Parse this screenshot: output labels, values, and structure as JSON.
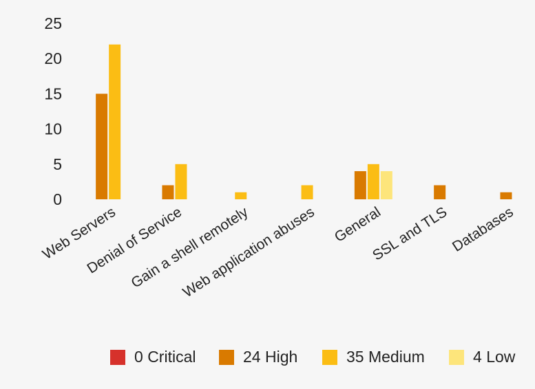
{
  "chart_data": {
    "type": "bar",
    "title": "",
    "xlabel": "",
    "ylabel": "",
    "ylim": [
      0,
      25
    ],
    "yticks": [
      0,
      5,
      10,
      15,
      20,
      25
    ],
    "grid": false,
    "legend_position": "bottom-right",
    "categories": [
      "Web Servers",
      "Denial of Service",
      "Gain a shell remotely",
      "Web application abuses",
      "General",
      "SSL and TLS",
      "Databases"
    ],
    "series": [
      {
        "name": "Critical",
        "count": "0",
        "color": "#d6312b",
        "values": [
          0,
          0,
          0,
          0,
          0,
          0,
          0
        ]
      },
      {
        "name": "High",
        "count": "24",
        "color": "#d97a00",
        "values": [
          15,
          2,
          0,
          0,
          4,
          2,
          1
        ]
      },
      {
        "name": "Medium",
        "count": "35",
        "color": "#fbbd14",
        "values": [
          22,
          5,
          1,
          2,
          5,
          0,
          0
        ]
      },
      {
        "name": "Low",
        "count": "4",
        "color": "#fde57b",
        "values": [
          0,
          0,
          0,
          0,
          4,
          0,
          0
        ]
      }
    ]
  }
}
